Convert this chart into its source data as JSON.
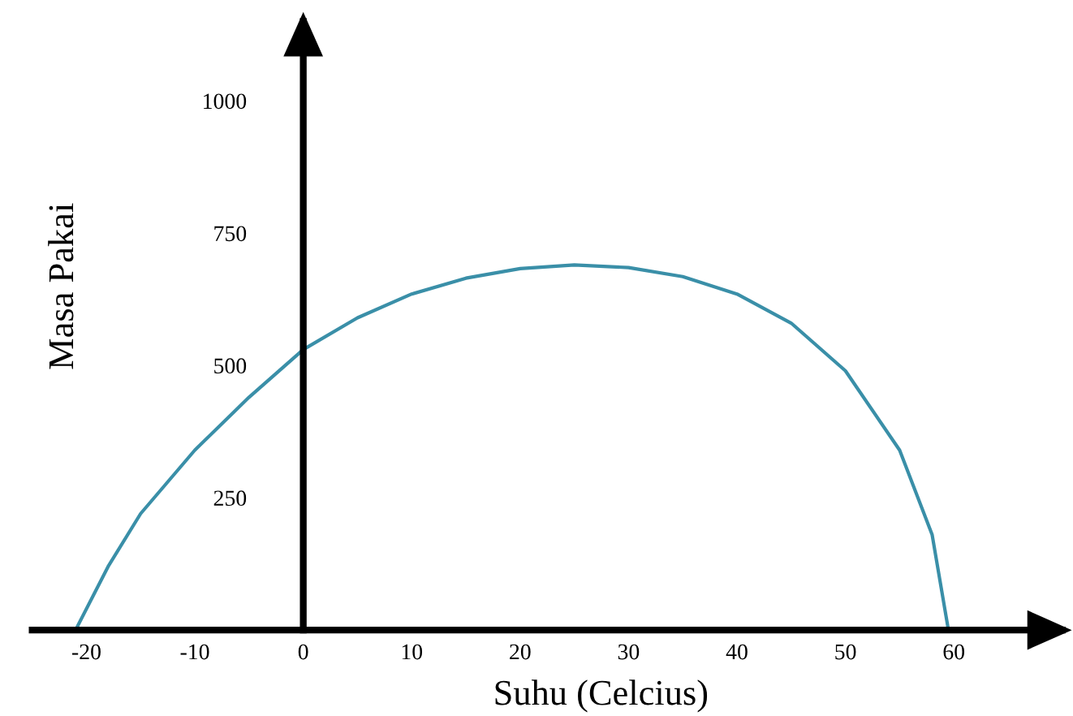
{
  "chart_data": {
    "type": "line",
    "xlabel": "Suhu (Celcius)",
    "ylabel": "Masa Pakai",
    "x": [
      -21,
      -18,
      -15,
      -10,
      -5,
      0,
      5,
      10,
      15,
      20,
      25,
      30,
      35,
      40,
      45,
      50,
      55,
      58,
      59.5
    ],
    "series": [
      {
        "color": "#3a8fa8",
        "values": [
          0,
          120,
          220,
          340,
          440,
          530,
          590,
          635,
          665,
          683,
          690,
          685,
          668,
          635,
          580,
          490,
          340,
          180,
          0
        ]
      }
    ],
    "xlim": [
      -25,
      70
    ],
    "ylim": [
      0,
      1150
    ],
    "xticks": [
      -20,
      -10,
      0,
      10,
      20,
      30,
      40,
      50,
      60
    ],
    "yticks": [
      250,
      500,
      750,
      1000
    ],
    "grid": false,
    "marker": "none",
    "line_style": "solid"
  }
}
